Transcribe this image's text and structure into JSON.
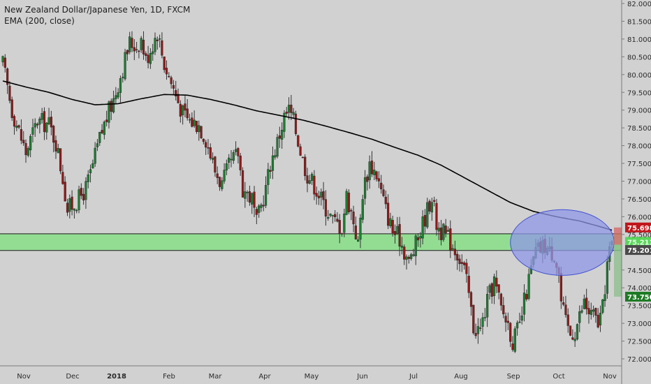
{
  "header": {
    "title": "New Zealand Dollar/Japanese Yen, 1D, FXCM",
    "indicator": "EMA (200, close)"
  },
  "colors": {
    "background": "#d1d1d1",
    "up_candle": "#1e7c32",
    "down_candle": "#8f1a1a",
    "wick": "#333333",
    "ema": "#000000",
    "zone_fill": "#7de07d",
    "ellipse_fill": "#8f97e6",
    "ellipse_stroke": "#4452d0",
    "price_badge_red": "#c0161b",
    "price_badge_dark": "#4a4a4a",
    "price_badge_green": "#1d7a24",
    "price_badge_lime": "#59d659"
  },
  "chart_data": {
    "type": "candlestick",
    "title": "New Zealand Dollar/Japanese Yen, 1D, FXCM",
    "ylim": [
      72,
      82
    ],
    "y_ticks": [
      "82.000",
      "81.500",
      "81.000",
      "80.500",
      "80.000",
      "79.500",
      "79.000",
      "78.500",
      "78.000",
      "77.500",
      "77.000",
      "76.500",
      "76.000",
      "75.500",
      "74.500",
      "74.000",
      "73.500",
      "73.000",
      "72.500",
      "72.000"
    ],
    "x_ticks": [
      "Nov",
      "Dec",
      "2018",
      "Feb",
      "Mar",
      "Apr",
      "May",
      "Jun",
      "Jul",
      "Aug",
      "Sep",
      "Oct",
      "Nov"
    ],
    "price_labels": [
      {
        "text": "75.698",
        "value": 75.698,
        "color": "red"
      },
      {
        "text": "75.213",
        "value": 75.213,
        "color": "lime"
      },
      {
        "text": "75.201",
        "value": 75.201,
        "color": "dark"
      },
      {
        "text": "73.750",
        "value": 73.75,
        "color": "green"
      }
    ],
    "support_zone": [
      75.05,
      75.52
    ],
    "highlight_ellipse": {
      "center_date_index": 243,
      "center_value": 75.35,
      "span_dates": [
        220,
        265
      ],
      "span_values": [
        74.35,
        76.2
      ]
    },
    "projection_box": {
      "values": [
        73.75,
        75.698
      ]
    },
    "grid": false,
    "candle_count": 265,
    "close_path": [
      [
        0,
        80.3
      ],
      [
        4,
        79.0
      ],
      [
        8,
        78.2
      ],
      [
        10,
        77.8
      ],
      [
        15,
        78.7
      ],
      [
        20,
        78.6
      ],
      [
        23,
        78.1
      ],
      [
        26,
        77.1
      ],
      [
        28,
        76.2
      ],
      [
        33,
        76.5
      ],
      [
        36,
        76.8
      ],
      [
        38,
        77.2
      ],
      [
        42,
        78.2
      ],
      [
        45,
        78.8
      ],
      [
        48,
        79.3
      ],
      [
        52,
        80.2
      ],
      [
        55,
        80.9
      ],
      [
        58,
        80.8
      ],
      [
        60,
        81.0
      ],
      [
        62,
        80.4
      ],
      [
        67,
        81.2
      ],
      [
        70,
        80.3
      ],
      [
        74,
        79.6
      ],
      [
        78,
        78.9
      ],
      [
        81,
        78.7
      ],
      [
        85,
        78.6
      ],
      [
        88,
        78.2
      ],
      [
        92,
        77.3
      ],
      [
        95,
        76.9
      ],
      [
        98,
        77.4
      ],
      [
        102,
        77.8
      ],
      [
        104,
        76.8
      ],
      [
        108,
        76.5
      ],
      [
        110,
        75.8
      ],
      [
        114,
        76.8
      ],
      [
        116,
        77.5
      ],
      [
        119,
        78.1
      ],
      [
        122,
        78.8
      ],
      [
        124,
        79.0
      ],
      [
        126,
        78.7
      ],
      [
        130,
        77.6
      ],
      [
        132,
        77.2
      ],
      [
        135,
        76.9
      ],
      [
        138,
        76.5
      ],
      [
        143,
        75.9
      ],
      [
        147,
        75.7
      ],
      [
        149,
        76.6
      ],
      [
        152,
        75.9
      ],
      [
        154,
        75.2
      ],
      [
        156,
        76.7
      ],
      [
        159,
        77.5
      ],
      [
        162,
        77.2
      ],
      [
        166,
        76.2
      ],
      [
        169,
        75.6
      ],
      [
        172,
        75.4
      ],
      [
        176,
        74.7
      ],
      [
        179,
        75.2
      ],
      [
        182,
        75.8
      ],
      [
        186,
        76.6
      ],
      [
        188,
        75.8
      ],
      [
        190,
        75.6
      ],
      [
        193,
        75.4
      ],
      [
        197,
        75.0
      ],
      [
        200,
        74.5
      ],
      [
        202,
        73.8
      ],
      [
        204,
        72.9
      ],
      [
        207,
        72.8
      ],
      [
        210,
        73.6
      ],
      [
        213,
        74.2
      ],
      [
        216,
        73.4
      ],
      [
        219,
        73.0
      ],
      [
        221,
        72.5
      ],
      [
        224,
        72.9
      ],
      [
        226,
        73.6
      ],
      [
        229,
        74.5
      ],
      [
        231,
        75.0
      ],
      [
        233,
        75.1
      ],
      [
        235,
        75.2
      ],
      [
        237,
        75.0
      ],
      [
        239,
        75.0
      ],
      [
        241,
        74.4
      ],
      [
        242,
        73.6
      ],
      [
        244,
        73.0
      ],
      [
        246,
        72.7
      ],
      [
        248,
        72.8
      ],
      [
        250,
        73.2
      ],
      [
        252,
        73.6
      ],
      [
        254,
        73.3
      ],
      [
        256,
        73.2
      ],
      [
        258,
        73.0
      ],
      [
        260,
        73.4
      ],
      [
        262,
        74.7
      ],
      [
        264,
        75.2
      ]
    ],
    "ema_path": [
      [
        0,
        79.82
      ],
      [
        10,
        79.65
      ],
      [
        20,
        79.5
      ],
      [
        30,
        79.3
      ],
      [
        40,
        79.15
      ],
      [
        50,
        79.18
      ],
      [
        60,
        79.32
      ],
      [
        70,
        79.44
      ],
      [
        80,
        79.42
      ],
      [
        90,
        79.3
      ],
      [
        100,
        79.15
      ],
      [
        110,
        78.98
      ],
      [
        120,
        78.85
      ],
      [
        130,
        78.72
      ],
      [
        140,
        78.55
      ],
      [
        150,
        78.37
      ],
      [
        160,
        78.18
      ],
      [
        170,
        77.95
      ],
      [
        180,
        77.73
      ],
      [
        190,
        77.45
      ],
      [
        200,
        77.1
      ],
      [
        210,
        76.75
      ],
      [
        220,
        76.4
      ],
      [
        230,
        76.15
      ],
      [
        240,
        76.0
      ],
      [
        250,
        75.88
      ],
      [
        260,
        75.7
      ],
      [
        264,
        75.62
      ]
    ]
  }
}
